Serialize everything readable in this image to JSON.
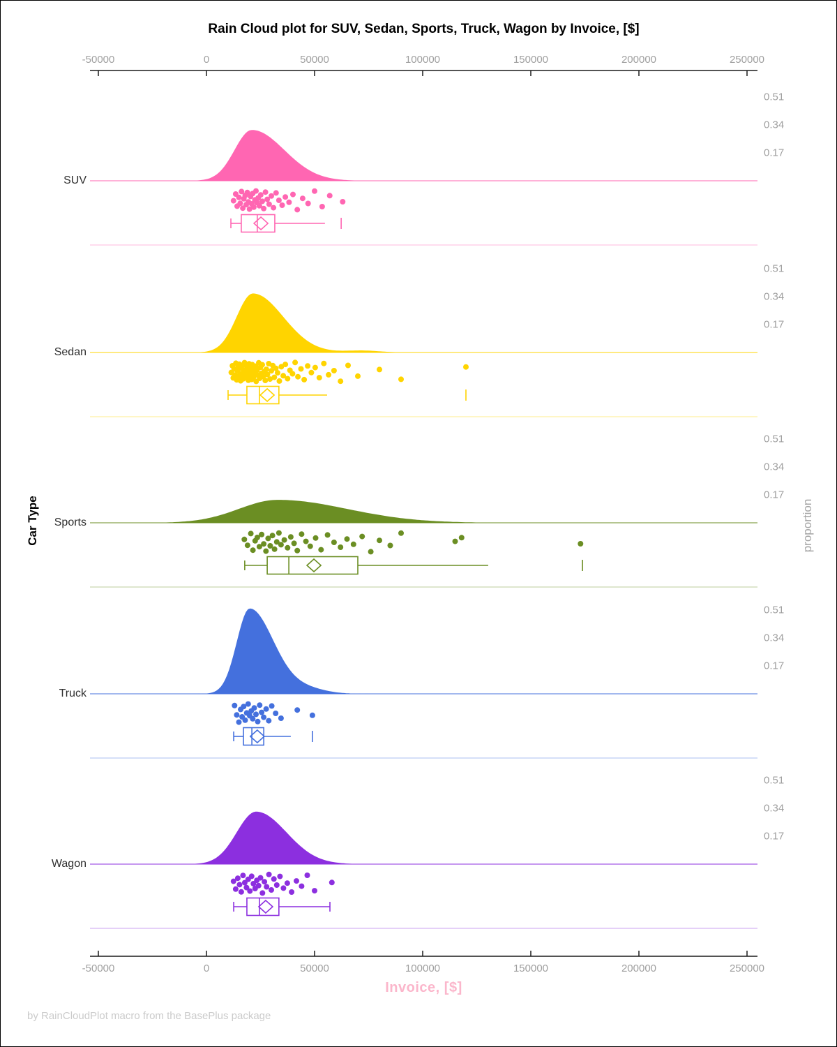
{
  "title": "Rain Cloud plot for SUV, Sedan, Sports, Truck, Wagon by Invoice, [$]",
  "footer": "by RainCloudPlot macro from the BasePlus package",
  "x_axis": {
    "label": "Invoice, [$]",
    "tick_labels": [
      "-50000",
      "0",
      "50000",
      "100000",
      "150000",
      "200000",
      "250000"
    ],
    "tick_values": [
      -50000,
      0,
      50000,
      100000,
      150000,
      200000,
      250000
    ]
  },
  "y_axis": {
    "label": "Car Type"
  },
  "right_axis": {
    "label": "proportion",
    "tick_labels": [
      "0.51",
      "0.34",
      "0.17"
    ],
    "tick_values": [
      0.51,
      0.34,
      0.17
    ]
  },
  "colors": {
    "axis_line": "#1a1a1a",
    "tick_text": "#9f9f9f",
    "category_text": "#2e2e2e",
    "title_text": "#000000",
    "x_label_text": "#fbb6cb",
    "footer_text": "#cbcbcb",
    "right_label_text": "#a4a4a4"
  },
  "chart_data": {
    "type": "raincloud",
    "xlabel": "Invoice, [$]",
    "ylabel": "Car Type",
    "right_axis_label": "proportion",
    "x_range": [
      -53000,
      255000
    ],
    "proportion_ticks": [
      0.17,
      0.34,
      0.51
    ],
    "series": [
      {
        "name": "SUV",
        "color": "#ff66b2",
        "density": {
          "mode": 21000,
          "sd_left": 8000,
          "sd_right": 15000,
          "peak": 0.31,
          "bumps": []
        },
        "box": {
          "whisker_low": 11300,
          "q1": 16100,
          "median": 23500,
          "q3": 31600,
          "whisker_high": 54800,
          "mean": 25200,
          "outliers": [
            62300
          ],
          "cap_low": true,
          "cap_high": false
        },
        "points": [
          [
            12500,
            0.52
          ],
          [
            13500,
            0.18
          ],
          [
            14200,
            0.8
          ],
          [
            15000,
            0.35
          ],
          [
            15600,
            0.65
          ],
          [
            16200,
            0.05
          ],
          [
            16800,
            0.9
          ],
          [
            17300,
            0.42
          ],
          [
            17900,
            0.25
          ],
          [
            18400,
            0.72
          ],
          [
            18900,
            0.1
          ],
          [
            19400,
            0.58
          ],
          [
            19900,
            0.95
          ],
          [
            20400,
            0.3
          ],
          [
            20900,
            0.68
          ],
          [
            21400,
            0.15
          ],
          [
            21900,
            0.85
          ],
          [
            22400,
            0.48
          ],
          [
            22900,
            0.02
          ],
          [
            23400,
            0.62
          ],
          [
            23900,
            0.38
          ],
          [
            24500,
            0.78
          ],
          [
            25100,
            0.22
          ],
          [
            25800,
            0.55
          ],
          [
            26500,
            0.92
          ],
          [
            27300,
            0.08
          ],
          [
            28100,
            0.45
          ],
          [
            29000,
            0.7
          ],
          [
            30000,
            0.28
          ],
          [
            31000,
            0.88
          ],
          [
            32200,
            0.12
          ],
          [
            33500,
            0.5
          ],
          [
            35000,
            0.75
          ],
          [
            36500,
            0.33
          ],
          [
            38200,
            0.6
          ],
          [
            40000,
            0.2
          ],
          [
            42000,
            0.98
          ],
          [
            44500,
            0.4
          ],
          [
            47000,
            0.66
          ],
          [
            50000,
            0.03
          ],
          [
            53500,
            0.82
          ],
          [
            57000,
            0.26
          ],
          [
            63000,
            0.57
          ]
        ]
      },
      {
        "name": "Sedan",
        "color": "#ffd400",
        "density": {
          "mode": 21500,
          "sd_left": 7500,
          "sd_right": 14000,
          "peak": 0.36,
          "bumps": [
            {
              "mode": 72000,
              "sd": 8000,
              "peak": 0.012
            }
          ]
        },
        "box": {
          "whisker_low": 10000,
          "q1": 18700,
          "median": 24500,
          "q3": 33500,
          "whisker_high": 55800,
          "mean": 28100,
          "outliers": [
            120000
          ],
          "cap_low": true,
          "cap_high": false
        },
        "points": [
          [
            11500,
            0.52
          ],
          [
            12000,
            0.18
          ],
          [
            12400,
            0.8
          ],
          [
            12800,
            0.35
          ],
          [
            13200,
            0.65
          ],
          [
            13600,
            0.05
          ],
          [
            14000,
            0.9
          ],
          [
            14300,
            0.42
          ],
          [
            14600,
            0.25
          ],
          [
            14900,
            0.72
          ],
          [
            15200,
            0.1
          ],
          [
            15500,
            0.58
          ],
          [
            15800,
            0.95
          ],
          [
            16100,
            0.3
          ],
          [
            16400,
            0.68
          ],
          [
            16700,
            0.15
          ],
          [
            17000,
            0.85
          ],
          [
            17300,
            0.48
          ],
          [
            17600,
            0.02
          ],
          [
            17900,
            0.62
          ],
          [
            18200,
            0.38
          ],
          [
            18500,
            0.78
          ],
          [
            18800,
            0.22
          ],
          [
            19100,
            0.55
          ],
          [
            19400,
            0.92
          ],
          [
            19700,
            0.08
          ],
          [
            20000,
            0.45
          ],
          [
            20300,
            0.7
          ],
          [
            20600,
            0.28
          ],
          [
            20900,
            0.88
          ],
          [
            21200,
            0.12
          ],
          [
            21500,
            0.5
          ],
          [
            21800,
            0.75
          ],
          [
            22100,
            0.33
          ],
          [
            22400,
            0.6
          ],
          [
            22700,
            0.2
          ],
          [
            23000,
            0.98
          ],
          [
            23400,
            0.4
          ],
          [
            23800,
            0.66
          ],
          [
            24200,
            0.03
          ],
          [
            24600,
            0.82
          ],
          [
            25000,
            0.26
          ],
          [
            25400,
            0.57
          ],
          [
            25800,
            0.13
          ],
          [
            26200,
            0.73
          ],
          [
            26700,
            0.47
          ],
          [
            27200,
            0.93
          ],
          [
            27700,
            0.36
          ],
          [
            28200,
            0.63
          ],
          [
            28800,
            0.07
          ],
          [
            29400,
            0.86
          ],
          [
            30000,
            0.44
          ],
          [
            30700,
            0.17
          ],
          [
            31400,
            0.77
          ],
          [
            32100,
            0.31
          ],
          [
            32900,
            0.54
          ],
          [
            33700,
            0.96
          ],
          [
            34600,
            0.23
          ],
          [
            35500,
            0.69
          ],
          [
            36500,
            0.11
          ],
          [
            37500,
            0.84
          ],
          [
            38600,
            0.41
          ],
          [
            39800,
            0.59
          ],
          [
            41000,
            0.01
          ],
          [
            42300,
            0.74
          ],
          [
            43700,
            0.34
          ],
          [
            45200,
            0.89
          ],
          [
            46800,
            0.19
          ],
          [
            48500,
            0.53
          ],
          [
            50300,
            0.27
          ],
          [
            52200,
            0.79
          ],
          [
            54300,
            0.06
          ],
          [
            56500,
            0.64
          ],
          [
            59000,
            0.43
          ],
          [
            62000,
            0.97
          ],
          [
            65500,
            0.16
          ],
          [
            70000,
            0.71
          ],
          [
            80000,
            0.37
          ],
          [
            90000,
            0.87
          ],
          [
            120000,
            0.24
          ]
        ]
      },
      {
        "name": "Sports",
        "color": "#6b8e23",
        "density": {
          "mode": 33000,
          "sd_left": 18000,
          "sd_right": 32000,
          "peak": 0.14,
          "bumps": []
        },
        "box": {
          "whisker_low": 17700,
          "q1": 28100,
          "median": 38100,
          "q3": 70000,
          "whisker_high": 130300,
          "mean": 49700,
          "outliers": [
            173900
          ],
          "cap_low": true,
          "cap_high": false
        },
        "points": [
          [
            17500,
            0.35
          ],
          [
            19000,
            0.65
          ],
          [
            20500,
            0.05
          ],
          [
            21500,
            0.9
          ],
          [
            22500,
            0.42
          ],
          [
            23500,
            0.25
          ],
          [
            24500,
            0.72
          ],
          [
            25500,
            0.1
          ],
          [
            26500,
            0.58
          ],
          [
            27500,
            0.95
          ],
          [
            28500,
            0.3
          ],
          [
            29500,
            0.68
          ],
          [
            30500,
            0.15
          ],
          [
            31500,
            0.85
          ],
          [
            32500,
            0.48
          ],
          [
            33500,
            0.02
          ],
          [
            34500,
            0.62
          ],
          [
            36000,
            0.38
          ],
          [
            37500,
            0.78
          ],
          [
            39000,
            0.22
          ],
          [
            40500,
            0.55
          ],
          [
            42000,
            0.92
          ],
          [
            44000,
            0.08
          ],
          [
            46000,
            0.45
          ],
          [
            48000,
            0.7
          ],
          [
            50500,
            0.28
          ],
          [
            53000,
            0.88
          ],
          [
            56000,
            0.12
          ],
          [
            59000,
            0.5
          ],
          [
            62000,
            0.75
          ],
          [
            65000,
            0.33
          ],
          [
            68000,
            0.6
          ],
          [
            72000,
            0.2
          ],
          [
            76000,
            0.98
          ],
          [
            80000,
            0.4
          ],
          [
            85000,
            0.66
          ],
          [
            90000,
            0.03
          ],
          [
            115000,
            0.45
          ],
          [
            118000,
            0.26
          ],
          [
            173000,
            0.57
          ]
        ]
      },
      {
        "name": "Truck",
        "color": "#4470dd",
        "density": {
          "mode": 20000,
          "sd_left": 6000,
          "sd_right": 11000,
          "peak": 0.52,
          "bumps": [
            {
              "mode": 46000,
              "sd": 9000,
              "peak": 0.03
            }
          ]
        },
        "box": {
          "whisker_low": 12600,
          "q1": 17100,
          "median": 21000,
          "q3": 26500,
          "whisker_high": 39000,
          "mean": 23500,
          "outliers": [
            49000
          ],
          "cap_low": true,
          "cap_high": false
        },
        "points": [
          [
            13000,
            0.1
          ],
          [
            14000,
            0.58
          ],
          [
            15000,
            0.95
          ],
          [
            15800,
            0.3
          ],
          [
            16500,
            0.68
          ],
          [
            17200,
            0.15
          ],
          [
            17900,
            0.85
          ],
          [
            18600,
            0.48
          ],
          [
            19300,
            0.02
          ],
          [
            20000,
            0.62
          ],
          [
            20700,
            0.38
          ],
          [
            21400,
            0.78
          ],
          [
            22100,
            0.22
          ],
          [
            22900,
            0.55
          ],
          [
            23700,
            0.92
          ],
          [
            24600,
            0.08
          ],
          [
            25500,
            0.45
          ],
          [
            26500,
            0.7
          ],
          [
            27600,
            0.28
          ],
          [
            28800,
            0.88
          ],
          [
            30200,
            0.12
          ],
          [
            32000,
            0.5
          ],
          [
            34500,
            0.75
          ],
          [
            42000,
            0.33
          ],
          [
            49000,
            0.6
          ]
        ]
      },
      {
        "name": "Wagon",
        "color": "#8c2fdf",
        "density": {
          "mode": 23000,
          "sd_left": 9000,
          "sd_right": 14000,
          "peak": 0.32,
          "bumps": []
        },
        "box": {
          "whisker_low": 12600,
          "q1": 18700,
          "median": 24500,
          "q3": 33500,
          "whisker_high": 57100,
          "mean": 27400,
          "outliers": [],
          "cap_low": true,
          "cap_high": true
        },
        "points": [
          [
            12500,
            0.38
          ],
          [
            13500,
            0.78
          ],
          [
            14500,
            0.22
          ],
          [
            15300,
            0.55
          ],
          [
            16100,
            0.92
          ],
          [
            16900,
            0.08
          ],
          [
            17700,
            0.45
          ],
          [
            18500,
            0.7
          ],
          [
            19300,
            0.28
          ],
          [
            20100,
            0.88
          ],
          [
            20900,
            0.12
          ],
          [
            21700,
            0.5
          ],
          [
            22500,
            0.75
          ],
          [
            23300,
            0.33
          ],
          [
            24100,
            0.6
          ],
          [
            25000,
            0.2
          ],
          [
            25900,
            0.98
          ],
          [
            26800,
            0.4
          ],
          [
            27800,
            0.66
          ],
          [
            28900,
            0.03
          ],
          [
            30000,
            0.82
          ],
          [
            31200,
            0.26
          ],
          [
            32500,
            0.57
          ],
          [
            34000,
            0.13
          ],
          [
            35600,
            0.73
          ],
          [
            37400,
            0.47
          ],
          [
            39400,
            0.93
          ],
          [
            41600,
            0.36
          ],
          [
            44000,
            0.63
          ],
          [
            46600,
            0.07
          ],
          [
            50000,
            0.86
          ],
          [
            58000,
            0.44
          ]
        ]
      }
    ]
  }
}
